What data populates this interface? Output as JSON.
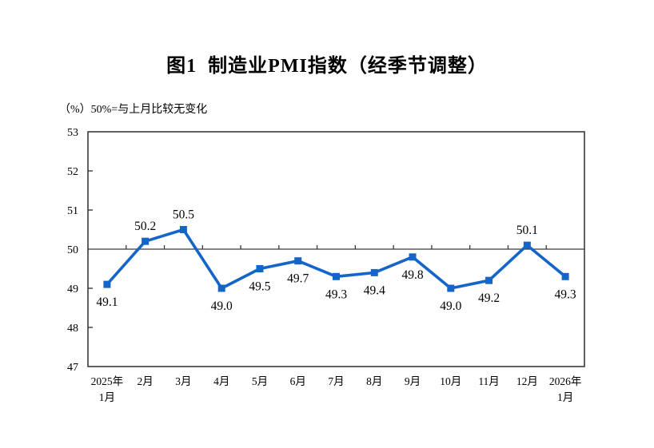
{
  "chart_data": {
    "type": "line",
    "title": "图1  制造业PMI指数（经季节调整）",
    "subtitle": "（%）50%=与上月比较无变化",
    "unit": "%",
    "categories": [
      "2025年\n1月",
      "2月",
      "3月",
      "4月",
      "5月",
      "6月",
      "7月",
      "8月",
      "9月",
      "10月",
      "11月",
      "12月",
      "2026年\n1月"
    ],
    "values": [
      49.1,
      50.2,
      50.5,
      49.0,
      49.5,
      49.7,
      49.3,
      49.4,
      49.8,
      49.0,
      49.2,
      50.1,
      49.3
    ],
    "ylim": [
      47,
      53
    ],
    "ytick_step": 1,
    "yticks": [
      47,
      48,
      49,
      50,
      51,
      52,
      53
    ],
    "reference_line": 50,
    "grid": "off",
    "legend": "none",
    "colors": {
      "line": "#1565C8",
      "marker": "#1565C8",
      "axis": "#3a3a3a",
      "text": "#000000",
      "background": "#ffffff"
    }
  }
}
